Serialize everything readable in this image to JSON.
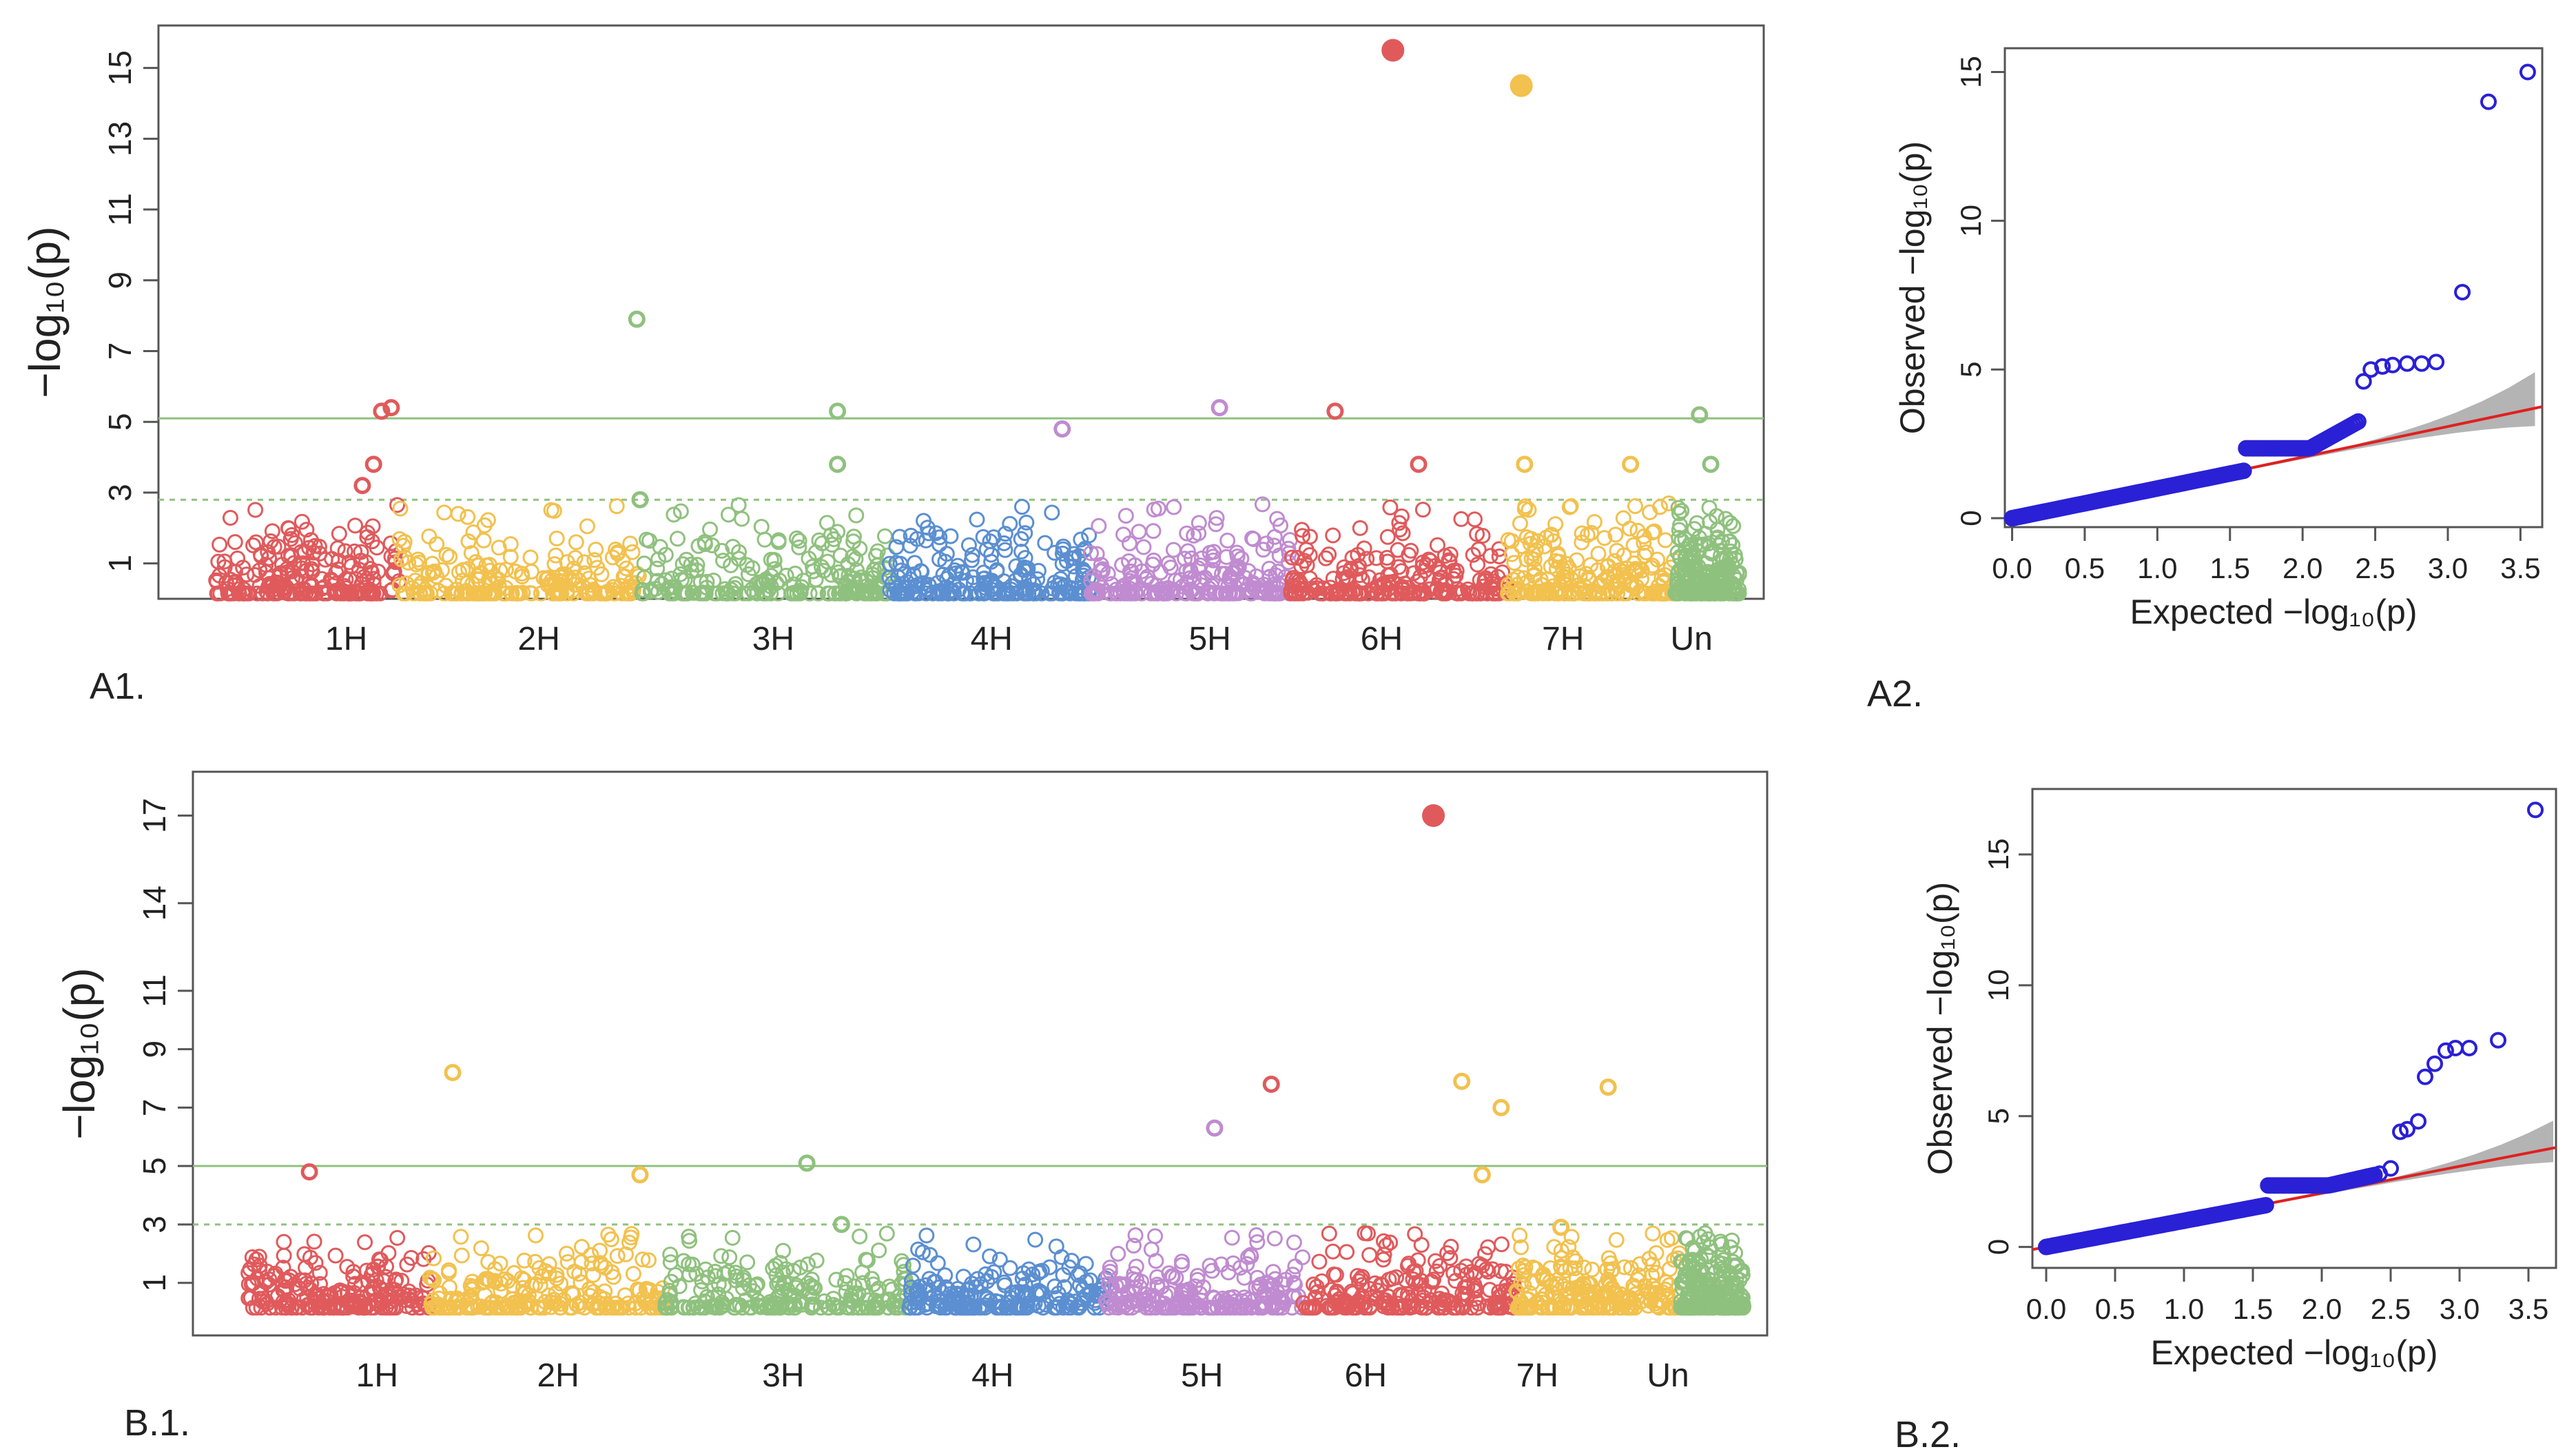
{
  "colors": {
    "chromosomes": [
      "#e05a5c",
      "#f2c14e",
      "#f2c14e",
      "#8fc17e",
      "#8fc17e",
      "#5b8fd1",
      "#c08bd0",
      "#c08bd0",
      "#e05a5c",
      "#e05a5c",
      "#f2c14e",
      "#f2c14e",
      "#8fc17e"
    ],
    "qq_points": "#2a20d6",
    "qq_line": "#e02020",
    "qq_band": "#b4b4b4",
    "threshold": "#8fc17e"
  },
  "chart_data": [
    {
      "type": "scatter",
      "panel_label": "A1.",
      "ylabel": "−log₁₀(p)",
      "ylim": [
        0,
        16.2
      ],
      "yticks": [
        1,
        3,
        5,
        7,
        9,
        11,
        13,
        15
      ],
      "chromosomes": [
        "1H",
        "2H",
        "3H",
        "4H",
        "5H",
        "6H",
        "7H",
        "Un"
      ],
      "chromosome_ranges": [
        [
          0.035,
          0.15
        ],
        [
          0.15,
          0.3
        ],
        [
          0.3,
          0.455
        ],
        [
          0.455,
          0.58
        ],
        [
          0.58,
          0.705
        ],
        [
          0.705,
          0.84
        ],
        [
          0.84,
          0.945
        ],
        [
          0.945,
          0.985
        ]
      ],
      "chromosome_tick_positions": [
        0.117,
        0.237,
        0.383,
        0.519,
        0.655,
        0.762,
        0.875,
        0.955
      ],
      "thresholds": {
        "suggestive": 2.8,
        "significant": 5.1
      },
      "highlight_points": [
        {
          "x": 0.139,
          "y": 5.3,
          "chr": "1H"
        },
        {
          "x": 0.145,
          "y": 5.4,
          "chr": "1H"
        },
        {
          "x": 0.134,
          "y": 3.8,
          "chr": "1H"
        },
        {
          "x": 0.127,
          "y": 3.2,
          "chr": "1H"
        },
        {
          "x": 0.298,
          "y": 7.9,
          "chr": "3H"
        },
        {
          "x": 0.3,
          "y": 2.8,
          "chr": "3H"
        },
        {
          "x": 0.423,
          "y": 5.3,
          "chr": "3H"
        },
        {
          "x": 0.423,
          "y": 3.8,
          "chr": "3H"
        },
        {
          "x": 0.563,
          "y": 4.8,
          "chr": "5H"
        },
        {
          "x": 0.661,
          "y": 5.4,
          "chr": "5H"
        },
        {
          "x": 0.733,
          "y": 5.3,
          "chr": "6H"
        },
        {
          "x": 0.769,
          "y": 15.5,
          "chr": "6H",
          "filled": true
        },
        {
          "x": 0.785,
          "y": 3.8,
          "chr": "6H"
        },
        {
          "x": 0.849,
          "y": 14.5,
          "chr": "7H",
          "filled": true
        },
        {
          "x": 0.851,
          "y": 3.8,
          "chr": "7H"
        },
        {
          "x": 0.917,
          "y": 3.8,
          "chr": "7H"
        },
        {
          "x": 0.96,
          "y": 5.2,
          "chr": "Un"
        },
        {
          "x": 0.967,
          "y": 3.8,
          "chr": "Un"
        }
      ]
    },
    {
      "type": "scatter",
      "panel_label": "A2.",
      "xlabel": "Expected −log₁₀(p)",
      "ylabel": "Observed −log₁₀(p)",
      "xlim": [
        -0.05,
        3.65
      ],
      "ylim": [
        -0.3,
        15.8
      ],
      "xticks": [
        "0.0",
        "0.5",
        "1.0",
        "1.5",
        "2.0",
        "2.5",
        "3.0",
        "3.5"
      ],
      "yticks": [
        0,
        5,
        10,
        15
      ],
      "top_points": [
        [
          2.42,
          4.6
        ],
        [
          2.47,
          5.0
        ],
        [
          2.55,
          5.1
        ],
        [
          2.62,
          5.15
        ],
        [
          2.72,
          5.2
        ],
        [
          2.82,
          5.2
        ],
        [
          2.92,
          5.25
        ],
        [
          3.1,
          7.6
        ],
        [
          3.28,
          14.0
        ],
        [
          3.55,
          15.0
        ]
      ],
      "ci_band_end": {
        "x": 3.6,
        "lower": 3.2,
        "upper": 4.8
      },
      "red_line": {
        "x": [
          -0.05,
          3.65
        ],
        "y": [
          -0.05,
          3.75
        ]
      }
    },
    {
      "type": "scatter",
      "panel_label": "B.1.",
      "ylabel": "−log₁₀(p)",
      "ylim": [
        -0.8,
        18.5
      ],
      "yticks": [
        1,
        3,
        5,
        7,
        9,
        11,
        14,
        17
      ],
      "chromosomes": [
        "1H",
        "2H",
        "3H",
        "4H",
        "5H",
        "6H",
        "7H",
        "Un"
      ],
      "chromosome_ranges": [
        [
          0.035,
          0.15
        ],
        [
          0.15,
          0.3
        ],
        [
          0.3,
          0.455
        ],
        [
          0.455,
          0.58
        ],
        [
          0.58,
          0.705
        ],
        [
          0.705,
          0.84
        ],
        [
          0.84,
          0.945
        ],
        [
          0.945,
          0.985
        ]
      ],
      "chromosome_tick_positions": [
        0.117,
        0.232,
        0.375,
        0.508,
        0.641,
        0.745,
        0.854,
        0.937
      ],
      "thresholds": {
        "suggestive": 3.0,
        "significant": 5.0
      },
      "highlight_points": [
        {
          "x": 0.074,
          "y": 4.8,
          "chr": "1H"
        },
        {
          "x": 0.165,
          "y": 8.2,
          "chr": "2H"
        },
        {
          "x": 0.284,
          "y": 4.7,
          "chr": "2H"
        },
        {
          "x": 0.39,
          "y": 5.1,
          "chr": "3H"
        },
        {
          "x": 0.412,
          "y": 3.0,
          "chr": "3H"
        },
        {
          "x": 0.649,
          "y": 6.3,
          "chr": "5H"
        },
        {
          "x": 0.685,
          "y": 7.8,
          "chr": "6H"
        },
        {
          "x": 0.788,
          "y": 17.0,
          "chr": "6H",
          "filled": true
        },
        {
          "x": 0.806,
          "y": 7.9,
          "chr": "7H"
        },
        {
          "x": 0.819,
          "y": 4.7,
          "chr": "7H"
        },
        {
          "x": 0.831,
          "y": 7.0,
          "chr": "7H"
        },
        {
          "x": 0.869,
          "y": 2.9,
          "chr": "7H"
        },
        {
          "x": 0.899,
          "y": 7.7,
          "chr": "7H"
        }
      ]
    },
    {
      "type": "scatter",
      "panel_label": "B.2.",
      "xlabel": "Expected −log₁₀(p)",
      "ylabel": "Observed −log₁₀(p)",
      "xlim": [
        -0.1,
        3.7
      ],
      "ylim": [
        -0.8,
        17.5
      ],
      "xticks": [
        "0.0",
        "0.5",
        "1.0",
        "1.5",
        "2.0",
        "2.5",
        "3.0",
        "3.5"
      ],
      "yticks": [
        0,
        5,
        10,
        15
      ],
      "top_points": [
        [
          2.42,
          2.8
        ],
        [
          2.5,
          3.0
        ],
        [
          2.57,
          4.4
        ],
        [
          2.62,
          4.5
        ],
        [
          2.7,
          4.8
        ],
        [
          2.75,
          6.5
        ],
        [
          2.82,
          7.0
        ],
        [
          2.9,
          7.5
        ],
        [
          2.97,
          7.6
        ],
        [
          3.07,
          7.6
        ],
        [
          3.28,
          7.9
        ],
        [
          3.55,
          16.7
        ]
      ],
      "ci_band_end": {
        "x": 3.68,
        "lower": 3.2,
        "upper": 4.6
      },
      "red_line": {
        "x": [
          -0.1,
          3.7
        ],
        "y": [
          -0.1,
          3.8
        ]
      }
    }
  ]
}
